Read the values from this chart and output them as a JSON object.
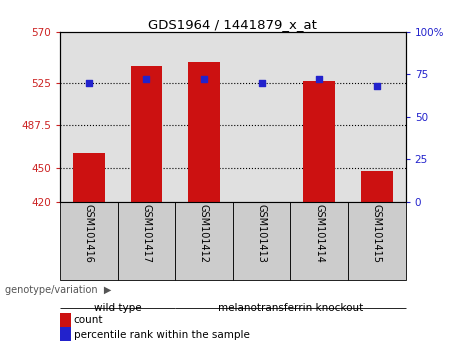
{
  "title": "GDS1964 / 1441879_x_at",
  "samples": [
    "GSM101416",
    "GSM101417",
    "GSM101412",
    "GSM101413",
    "GSM101414",
    "GSM101415"
  ],
  "counts": [
    463,
    540,
    543,
    420,
    527,
    447
  ],
  "percentiles": [
    70,
    72,
    72,
    70,
    72,
    68
  ],
  "ylim_left": [
    420,
    570
  ],
  "yticks_left": [
    420,
    450,
    487.5,
    525,
    570
  ],
  "ylim_right": [
    0,
    100
  ],
  "yticks_right": [
    0,
    25,
    50,
    75,
    100
  ],
  "ytick_labels_right": [
    "0",
    "25",
    "50",
    "75",
    "100%"
  ],
  "bar_color": "#cc1111",
  "dot_color": "#2222cc",
  "bar_width": 0.55,
  "groups": [
    {
      "label": "wild type",
      "indices": [
        0,
        1
      ],
      "color": "#aaeaaa"
    },
    {
      "label": "melanotransferrin knockout",
      "indices": [
        2,
        3,
        4,
        5
      ],
      "color": "#44dd44"
    }
  ],
  "group_label": "genotype/variation",
  "legend_count_label": "count",
  "legend_percentile_label": "percentile rank within the sample",
  "left_tick_color": "#cc2222",
  "right_tick_color": "#2222cc",
  "background_plot": "#e0e0e0",
  "background_label": "#cccccc"
}
